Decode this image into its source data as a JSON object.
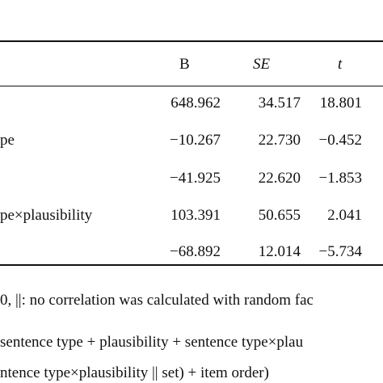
{
  "table": {
    "headers": {
      "b": "B",
      "se": "SE",
      "t": "t"
    },
    "rows": [
      {
        "label": "",
        "b": "648.962",
        "se": "34.517",
        "t": "18.801"
      },
      {
        "label": "pe",
        "b": "−10.267",
        "se": "22.730",
        "t": "−0.452"
      },
      {
        "label": "",
        "b": "−41.925",
        "se": "22.620",
        "t": "−1.853"
      },
      {
        "label": "pe×plausibility",
        "b": "103.391",
        "se": "50.655",
        "t": "2.041"
      },
      {
        "label": "",
        "b": "−68.892",
        "se": "12.014",
        "t": "−5.734"
      }
    ]
  },
  "notes": {
    "line1": "0, ||: no correlation was calculated with random fac",
    "line2": "sentence type + plausibility + sentence type×plau",
    "line3": "ntence type×plausibility || set) + item order)"
  }
}
